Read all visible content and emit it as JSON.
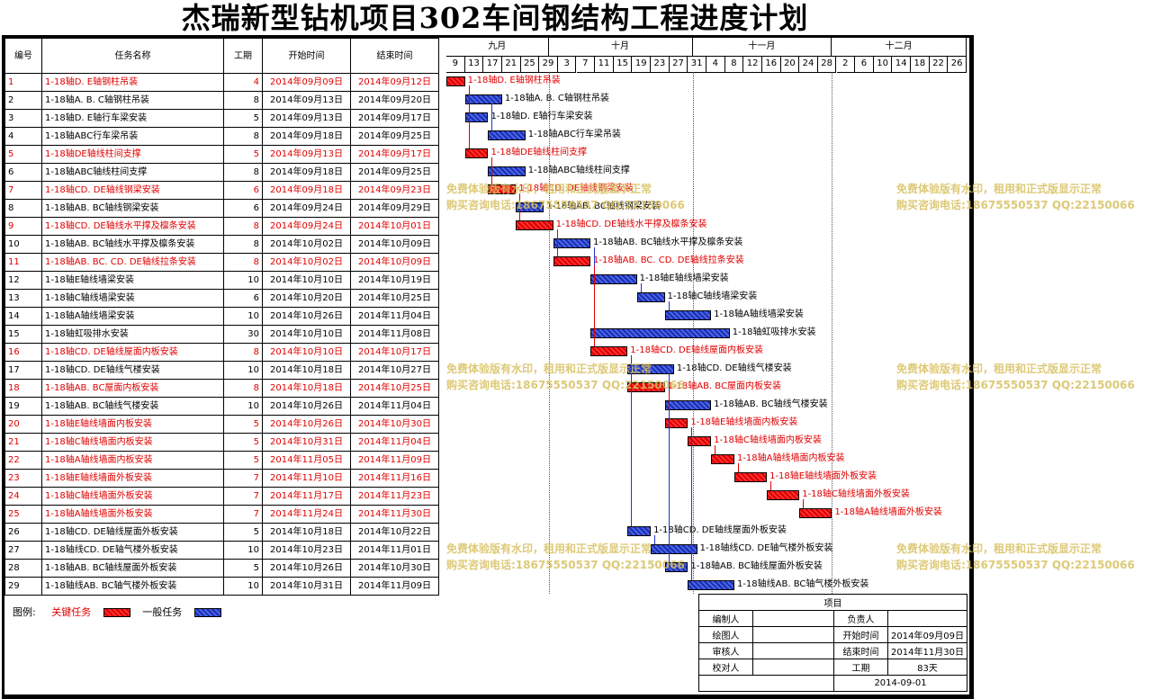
{
  "title": "杰瑞新型钻机项目302车间钢结构工程进度计划",
  "headers": {
    "no": "编号",
    "name": "任务名称",
    "dur": "工期",
    "start": "开始时间",
    "end": "结束时间"
  },
  "months": [
    "九月",
    "十月",
    "十一月",
    "十二月"
  ],
  "days": [
    "9",
    "13",
    "17",
    "21",
    "25",
    "29",
    "3",
    "7",
    "11",
    "15",
    "19",
    "23",
    "27",
    "31",
    "4",
    "8",
    "12",
    "16",
    "20",
    "24",
    "28",
    "2",
    "6",
    "10",
    "14",
    "18",
    "22",
    "26"
  ],
  "tasks": [
    {
      "no": "1",
      "name": "1-18轴D. E轴钢柱吊装",
      "dur": "4",
      "start": "2014年09月09日",
      "end": "2014年09月12日",
      "key": true,
      "s": 0,
      "d": 4
    },
    {
      "no": "2",
      "name": "1-18轴A. B. C轴钢柱吊装",
      "dur": "8",
      "start": "2014年09月13日",
      "end": "2014年09月20日",
      "key": false,
      "s": 4,
      "d": 8
    },
    {
      "no": "3",
      "name": "1-18轴D. E轴行车梁安装",
      "dur": "5",
      "start": "2014年09月13日",
      "end": "2014年09月17日",
      "key": false,
      "s": 4,
      "d": 5
    },
    {
      "no": "4",
      "name": "1-18轴ABC行车梁吊装",
      "dur": "8",
      "start": "2014年09月18日",
      "end": "2014年09月25日",
      "key": false,
      "s": 9,
      "d": 8
    },
    {
      "no": "5",
      "name": "1-18轴DE轴线柱间支撑",
      "dur": "5",
      "start": "2014年09月13日",
      "end": "2014年09月17日",
      "key": true,
      "s": 4,
      "d": 5
    },
    {
      "no": "6",
      "name": "1-18轴ABC轴线柱间支撑",
      "dur": "8",
      "start": "2014年09月18日",
      "end": "2014年09月25日",
      "key": false,
      "s": 9,
      "d": 8
    },
    {
      "no": "7",
      "name": "1-18轴CD. DE轴线钢梁安装",
      "dur": "6",
      "start": "2014年09月18日",
      "end": "2014年09月23日",
      "key": true,
      "s": 9,
      "d": 6
    },
    {
      "no": "8",
      "name": "1-18轴AB. BC轴线钢梁安装",
      "dur": "6",
      "start": "2014年09月24日",
      "end": "2014年09月29日",
      "key": false,
      "s": 15,
      "d": 6
    },
    {
      "no": "9",
      "name": "1-18轴CD. DE轴线水平撑及檩条安装",
      "dur": "8",
      "start": "2014年09月24日",
      "end": "2014年10月01日",
      "key": true,
      "s": 15,
      "d": 8
    },
    {
      "no": "10",
      "name": "1-18轴AB. BC轴线水平撑及檩条安装",
      "dur": "8",
      "start": "2014年10月02日",
      "end": "2014年10月09日",
      "key": false,
      "s": 23,
      "d": 8
    },
    {
      "no": "11",
      "name": "1-18轴AB. BC. CD. DE轴线拉条安装",
      "dur": "8",
      "start": "2014年10月02日",
      "end": "2014年10月09日",
      "key": true,
      "s": 23,
      "d": 8
    },
    {
      "no": "12",
      "name": "1-18轴E轴线墙梁安装",
      "dur": "10",
      "start": "2014年10月10日",
      "end": "2014年10月19日",
      "key": false,
      "s": 31,
      "d": 10
    },
    {
      "no": "13",
      "name": "1-18轴C轴线墙梁安装",
      "dur": "6",
      "start": "2014年10月20日",
      "end": "2014年10月25日",
      "key": false,
      "s": 41,
      "d": 6
    },
    {
      "no": "14",
      "name": "1-18轴A轴线墙梁安装",
      "dur": "10",
      "start": "2014年10月26日",
      "end": "2014年11月04日",
      "key": false,
      "s": 47,
      "d": 10
    },
    {
      "no": "15",
      "name": "1-18轴虹吸排水安装",
      "dur": "30",
      "start": "2014年10月10日",
      "end": "2014年11月08日",
      "key": false,
      "s": 31,
      "d": 30
    },
    {
      "no": "16",
      "name": "1-18轴CD. DE轴线屋面内板安装",
      "dur": "8",
      "start": "2014年10月10日",
      "end": "2014年10月17日",
      "key": true,
      "s": 31,
      "d": 8
    },
    {
      "no": "17",
      "name": "1-18轴CD. DE轴线气楼安装",
      "dur": "10",
      "start": "2014年10月18日",
      "end": "2014年10月27日",
      "key": false,
      "s": 39,
      "d": 10
    },
    {
      "no": "18",
      "name": "1-18轴AB. BC屋面内板安装",
      "dur": "8",
      "start": "2014年10月18日",
      "end": "2014年10月25日",
      "key": true,
      "s": 39,
      "d": 8
    },
    {
      "no": "19",
      "name": "1-18轴AB. BC轴线气楼安装",
      "dur": "10",
      "start": "2014年10月26日",
      "end": "2014年11月04日",
      "key": false,
      "s": 47,
      "d": 10
    },
    {
      "no": "20",
      "name": "1-18轴E轴线墙面内板安装",
      "dur": "5",
      "start": "2014年10月26日",
      "end": "2014年10月30日",
      "key": true,
      "s": 47,
      "d": 5
    },
    {
      "no": "21",
      "name": "1-18轴C轴线墙面内板安装",
      "dur": "5",
      "start": "2014年10月31日",
      "end": "2014年11月04日",
      "key": true,
      "s": 52,
      "d": 5
    },
    {
      "no": "22",
      "name": "1-18轴A轴线墙面内板安装",
      "dur": "5",
      "start": "2014年11月05日",
      "end": "2014年11月09日",
      "key": true,
      "s": 57,
      "d": 5
    },
    {
      "no": "23",
      "name": "1-18轴E轴线墙面外板安装",
      "dur": "7",
      "start": "2014年11月10日",
      "end": "2014年11月16日",
      "key": true,
      "s": 62,
      "d": 7
    },
    {
      "no": "24",
      "name": "1-18轴C轴线墙面外板安装",
      "dur": "7",
      "start": "2014年11月17日",
      "end": "2014年11月23日",
      "key": true,
      "s": 69,
      "d": 7
    },
    {
      "no": "25",
      "name": "1-18轴A轴线墙面外板安装",
      "dur": "7",
      "start": "2014年11月24日",
      "end": "2014年11月30日",
      "key": true,
      "s": 76,
      "d": 7
    },
    {
      "no": "26",
      "name": "1-18轴CD. DE轴线屋面外板安装",
      "dur": "5",
      "start": "2014年10月18日",
      "end": "2014年10月22日",
      "key": false,
      "s": 39,
      "d": 5
    },
    {
      "no": "27",
      "name": "1-18轴线CD. DE轴气楼外板安装",
      "dur": "10",
      "start": "2014年10月23日",
      "end": "2014年11月01日",
      "key": false,
      "s": 44,
      "d": 10
    },
    {
      "no": "28",
      "name": "1-18轴AB. BC轴线屋面外板安装",
      "dur": "5",
      "start": "2014年10月26日",
      "end": "2014年10月30日",
      "key": false,
      "s": 47,
      "d": 5
    },
    {
      "no": "29",
      "name": "1-18轴线AB. BC轴气楼外板安装",
      "dur": "10",
      "start": "2014年10月31日",
      "end": "2014年11月09日",
      "key": false,
      "s": 52,
      "d": 10
    }
  ],
  "watermark": {
    "line1": "免费体验版有水印，租用和正式版显示正常",
    "line2": "购买咨询电话:18675550537 QQ:22150066"
  },
  "legend": {
    "label": "图例:",
    "key": "关键任务",
    "normal": "一般任务"
  },
  "info": {
    "project_label": "项目",
    "compiler_label": "编制人",
    "owner_label": "负责人",
    "drawer_label": "绘图人",
    "start_label": "开始时间",
    "start_value": "2014年09月09日",
    "checker_label": "审核人",
    "end_label": "结束时间",
    "end_value": "2014年11月30日",
    "proof_label": "校对人",
    "dur_label": "工期",
    "dur_value": "83天",
    "date": "2014-09-01"
  },
  "colors": {
    "key": "#e00000",
    "normal": "#1a2fb0",
    "watermark": "#d8c060"
  }
}
